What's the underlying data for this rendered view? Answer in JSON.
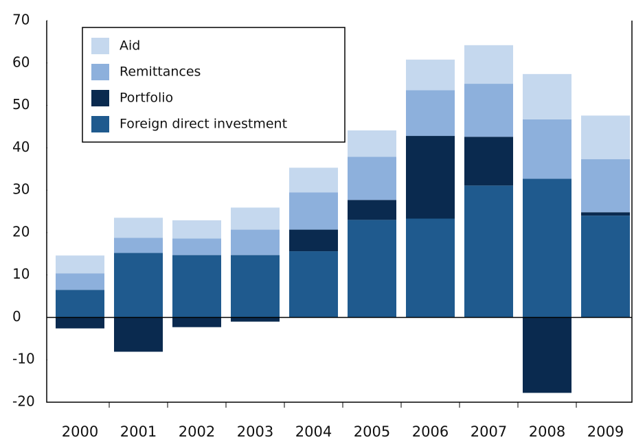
{
  "chart_data": {
    "type": "stacked-bar",
    "categories": [
      "2000",
      "2001",
      "2002",
      "2003",
      "2004",
      "2005",
      "2006",
      "2007",
      "2008",
      "2009"
    ],
    "series": [
      {
        "name": "Foreign direct investment",
        "color": "#1f5a8e",
        "values": [
          6.5,
          15.2,
          14.7,
          14.7,
          15.6,
          23.0,
          23.3,
          31.1,
          32.7,
          24.0
        ]
      },
      {
        "name": "Portfolio",
        "color": "#0a2a4f",
        "values": [
          -2.6,
          -8.1,
          -2.3,
          -1.0,
          5.1,
          4.7,
          19.5,
          11.5,
          -17.8,
          0.8
        ]
      },
      {
        "name": "Remittances",
        "color": "#8db0dc",
        "values": [
          3.9,
          3.6,
          3.9,
          6.0,
          8.8,
          10.2,
          10.8,
          12.5,
          14.0,
          12.5
        ]
      },
      {
        "name": "Aid",
        "color": "#c5d8ee",
        "values": [
          4.2,
          4.7,
          4.3,
          5.2,
          5.8,
          6.2,
          7.2,
          9.1,
          10.7,
          10.3
        ]
      }
    ],
    "ylim": [
      -20,
      70
    ],
    "yticks": [
      -20,
      -10,
      0,
      10,
      20,
      30,
      40,
      50,
      60,
      70
    ],
    "legend": "upper left"
  }
}
